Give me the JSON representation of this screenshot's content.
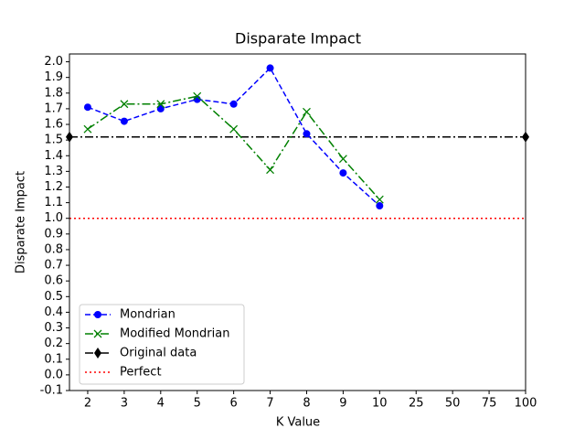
{
  "chart_data": {
    "type": "line",
    "title": "Disparate Impact",
    "xlabel": "K Value",
    "ylabel": "Disparate Impact",
    "categories": [
      "2",
      "3",
      "4",
      "5",
      "6",
      "7",
      "8",
      "9",
      "10",
      "25",
      "50",
      "75",
      "100"
    ],
    "series": [
      {
        "name": "Mondrian",
        "color": "#0000ff",
        "dash": "6,3",
        "marker": "circle",
        "values": [
          1.71,
          1.62,
          1.7,
          1.76,
          1.73,
          1.96,
          1.54,
          1.29,
          1.08,
          null,
          null,
          null,
          null
        ]
      },
      {
        "name": "Modified Mondrian",
        "color": "#008000",
        "dash": "9,3,2,3",
        "marker": "x",
        "values": [
          1.57,
          1.73,
          1.73,
          1.78,
          1.57,
          1.31,
          1.68,
          1.38,
          1.12,
          null,
          null,
          null,
          null
        ]
      }
    ],
    "reference_lines": [
      {
        "name": "Original data",
        "color": "#000000",
        "dash": "9,3,2,3",
        "marker": "diamond",
        "value": 1.52
      },
      {
        "name": "Perfect",
        "color": "#ff0000",
        "dash": "2,3",
        "value": 1.0
      }
    ],
    "ylim": [
      -0.1,
      2.05
    ],
    "yticks": [
      -0.1,
      {
        "value": 0,
        "label": "0.0"
      },
      0.1,
      0.2,
      0.3,
      0.4,
      0.5,
      0.6,
      0.7,
      0.8,
      0.9,
      {
        "value": 1,
        "label": "1.0"
      },
      1.1,
      1.2,
      1.3,
      1.4,
      1.5,
      1.6,
      1.7,
      1.8,
      1.9,
      {
        "value": 2,
        "label": "2.0"
      }
    ],
    "legend": "lower left",
    "grid": false
  }
}
